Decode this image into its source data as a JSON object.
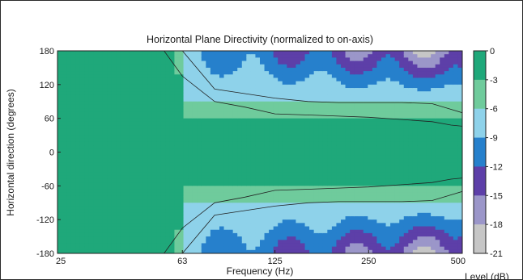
{
  "chart_data": {
    "type": "heatmap",
    "title": "Horizontal Plane Directivity (normalized to on-axis)",
    "xlabel": "Frequency (Hz)",
    "ylabel": "Horizontal direction (degrees)",
    "colorbar_label": "Level (dB)",
    "x_scale": "log",
    "xlim": [
      25,
      500
    ],
    "ylim": [
      -180,
      180
    ],
    "x_ticks": [
      {
        "value": 25,
        "label": "25"
      },
      {
        "value": 63,
        "label": "63"
      },
      {
        "value": 125,
        "label": "125"
      },
      {
        "value": 250,
        "label": "250"
      },
      {
        "value": 500,
        "label": "500"
      }
    ],
    "y_ticks": [
      {
        "value": 180,
        "label": "180"
      },
      {
        "value": 120,
        "label": "120"
      },
      {
        "value": 60,
        "label": "60"
      },
      {
        "value": 0,
        "label": "0"
      },
      {
        "value": -60,
        "label": "-60"
      },
      {
        "value": -120,
        "label": "-120"
      },
      {
        "value": -180,
        "label": "-180"
      }
    ],
    "level_bands": [
      {
        "range": [
          -3,
          0
        ],
        "color": "#1fa87a"
      },
      {
        "range": [
          -6,
          -3
        ],
        "color": "#6fcb9c"
      },
      {
        "range": [
          -9,
          -6
        ],
        "color": "#8ed2ea"
      },
      {
        "range": [
          -12,
          -9
        ],
        "color": "#2680cc"
      },
      {
        "range": [
          -15,
          -12
        ],
        "color": "#5d3fa8"
      },
      {
        "range": [
          -18,
          -15
        ],
        "color": "#9b96c9"
      },
      {
        "range": [
          -21,
          -18
        ],
        "color": "#c6c6c6"
      }
    ],
    "colorbar_ticks": [
      "0",
      "-3",
      "-6",
      "-9",
      "-12",
      "-15",
      "-18",
      "-21"
    ],
    "contour_boundaries_deg": {
      "frequencies_hz": [
        25,
        40,
        55,
        63,
        80,
        100,
        125,
        160,
        200,
        250,
        320,
        400,
        460,
        500
      ],
      "minus3": [
        180,
        180,
        180,
        135,
        90,
        80,
        68,
        66,
        64,
        62,
        58,
        54,
        48,
        46
      ],
      "minus6": [
        180,
        180,
        180,
        180,
        112,
        104,
        96,
        90,
        88,
        88,
        88,
        86,
        76,
        70
      ]
    }
  }
}
